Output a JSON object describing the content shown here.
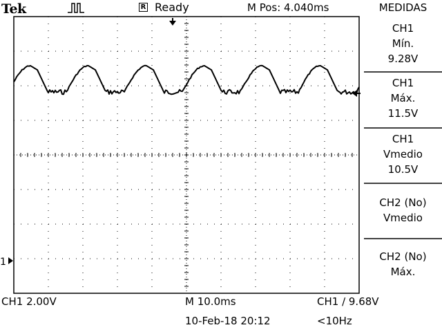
{
  "header": {
    "brand": "Tek",
    "acquisition_icon": "pulse-run-icon",
    "status_box": "R",
    "status": "Ready",
    "m_pos": "M Pos: 4.040ms"
  },
  "panel": {
    "title": "MEDIDAS",
    "measurements": [
      {
        "source": "CH1",
        "type": "Mín.",
        "value": "9.28V"
      },
      {
        "source": "CH1",
        "type": "Máx.",
        "value": "11.5V"
      },
      {
        "source": "CH1",
        "type": "Vmedio",
        "value": "10.5V"
      },
      {
        "source": "CH2 (No)",
        "type": "Vmedio",
        "value": ""
      },
      {
        "source": "CH2 (No)",
        "type": "Máx.",
        "value": ""
      }
    ]
  },
  "markers": {
    "ch1_ground": "1",
    "trigger_position_icon": "down-arrow-icon",
    "trigger_level_icon": "left-arrow-icon"
  },
  "footer": {
    "ch1_scale": "CH1  2.00V",
    "timebase": "M 10.0ms",
    "trigger": "CH1 ∕ 9.68V",
    "date": "10-Feb-18 20:12",
    "frequency": "<10Hz"
  },
  "colors": {
    "background": "#ffffff",
    "trace": "#000000",
    "graticule": "#000000"
  }
}
